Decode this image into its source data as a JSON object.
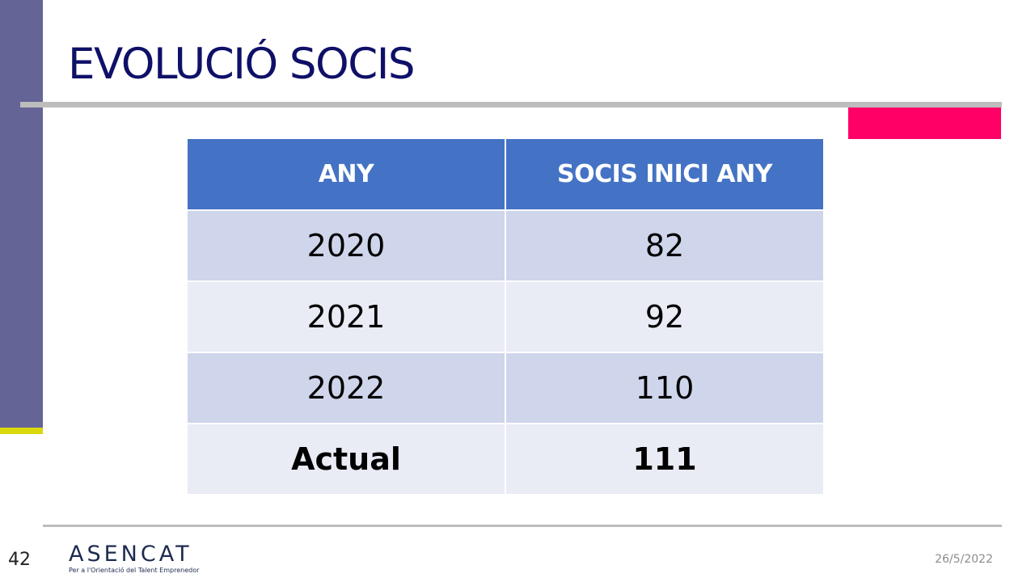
{
  "slide": {
    "title": "EVOLUCIÓ SOCIS",
    "page_number": "42",
    "date": "26/5/2022"
  },
  "logo": {
    "text": "ASENCAT",
    "tagline": "Per a l'Orientació del Talent Emprenedor"
  },
  "table": {
    "headers": [
      "ANY",
      "SOCIS INICI ANY"
    ],
    "rows": [
      [
        "2020",
        "82"
      ],
      [
        "2021",
        "92"
      ],
      [
        "2022",
        "110"
      ],
      [
        "Actual",
        "111"
      ]
    ]
  },
  "colors": {
    "title": "#0f1068",
    "header_bg": "#4472c4",
    "row_dark": "#cfd5ea",
    "row_light": "#e9ebf5",
    "side_bar": "#646496",
    "accent_pink": "#ff0066",
    "accent_yellow": "#d8d80a"
  }
}
